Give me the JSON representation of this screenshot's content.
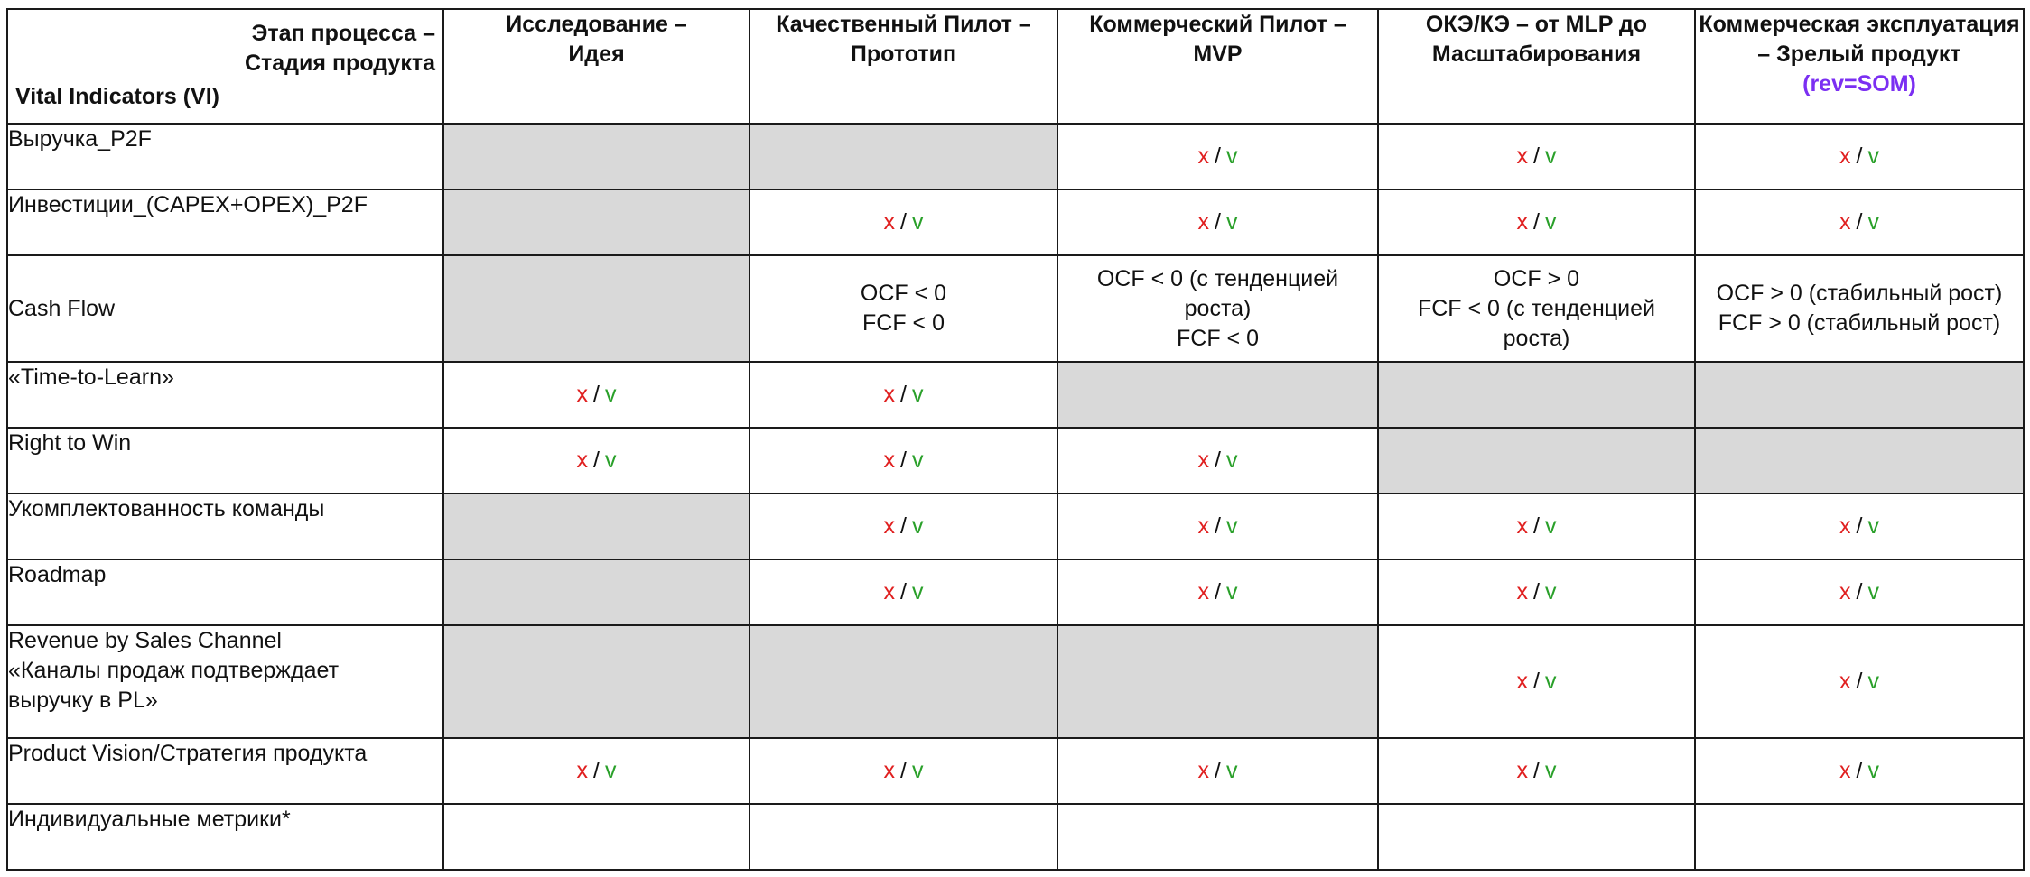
{
  "header": {
    "corner_stage_line1": "Этап процесса –",
    "corner_stage_line2": "Стадия продукта",
    "corner_vi": "Vital Indicators (VI)",
    "columns": [
      {
        "line1": "Исследование –",
        "line2": "Идея"
      },
      {
        "line1": "Качественный Пилот –",
        "line2": "Прототип"
      },
      {
        "line1": "Коммерческий Пилот –",
        "line2": "MVP"
      },
      {
        "line1": "ОКЭ/КЭ – от MLP до",
        "line2": "Масштабирования"
      },
      {
        "line1": "Коммерческая эксплуатация",
        "line2": "– Зрелый продукт",
        "line3": "(rev=SOM)"
      }
    ]
  },
  "marks": {
    "x": "x",
    "sep": "/",
    "v": "v"
  },
  "rows": [
    {
      "label": "Выручка_P2F"
    },
    {
      "label": "Инвестиции_(CAPEX+OPEX)_P2F"
    },
    {
      "label": "Cash Flow",
      "c2": [
        "OCF < 0",
        "FCF < 0"
      ],
      "c3": [
        "OCF < 0 (с тенденцией",
        "роста)",
        "FCF < 0"
      ],
      "c4": [
        "OCF > 0",
        "FCF < 0 (с тенденцией",
        "роста)"
      ],
      "c5": [
        "OCF > 0 (стабильный рост)",
        "FCF > 0 (стабильный рост)"
      ]
    },
    {
      "label": "«Time-to-Learn»"
    },
    {
      "label": "Right to Win"
    },
    {
      "label": "Укомплектованность команды"
    },
    {
      "label": "Roadmap"
    },
    {
      "label_lines": [
        "Revenue by Sales Channel",
        "«Каналы продаж подтверждает",
        "выручку в PL»"
      ]
    },
    {
      "label": "Product Vision/Стратегия продукта"
    },
    {
      "label": "Индивидуальные метрики*"
    }
  ],
  "colors": {
    "x": "#e02020",
    "v": "#2aa02a",
    "gray_cell": "#d9d9d9",
    "som_accent": "#7b2ff2"
  }
}
